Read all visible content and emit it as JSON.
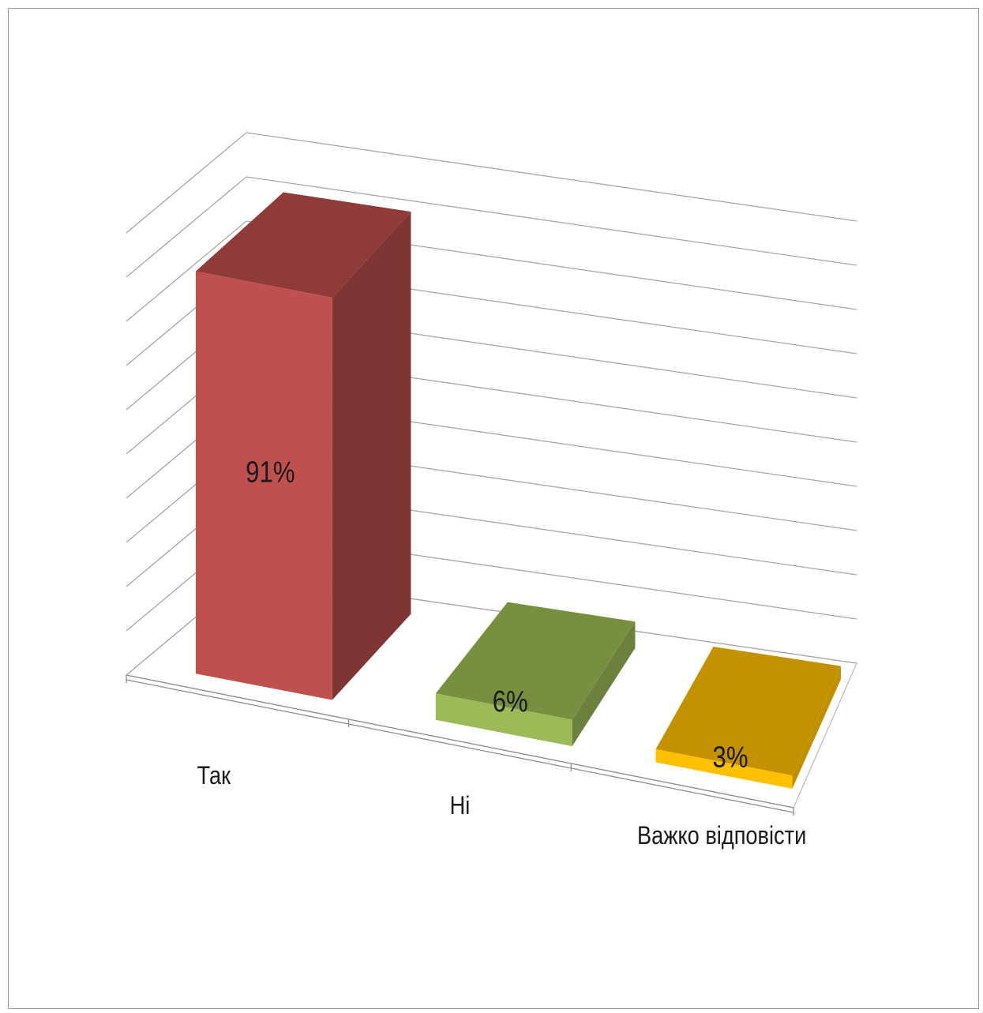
{
  "chart_data": {
    "type": "bar",
    "style": "3d-column",
    "categories": [
      "Так",
      "Ні",
      "Важко відповісти"
    ],
    "values": [
      91,
      6,
      3
    ],
    "value_labels": [
      "91%",
      "6%",
      "3%"
    ],
    "colors": [
      "#c0504d",
      "#9bbb59",
      "#ffc000"
    ],
    "side_colors": [
      "#7f3533",
      "#6b813d",
      "#bf9000"
    ],
    "top_colors": [
      "#8e3b39",
      "#77903f",
      "#c49100"
    ],
    "title": "",
    "xlabel": "",
    "ylabel": "",
    "ylim": [
      0,
      100
    ],
    "grid": true,
    "legend": "none"
  }
}
